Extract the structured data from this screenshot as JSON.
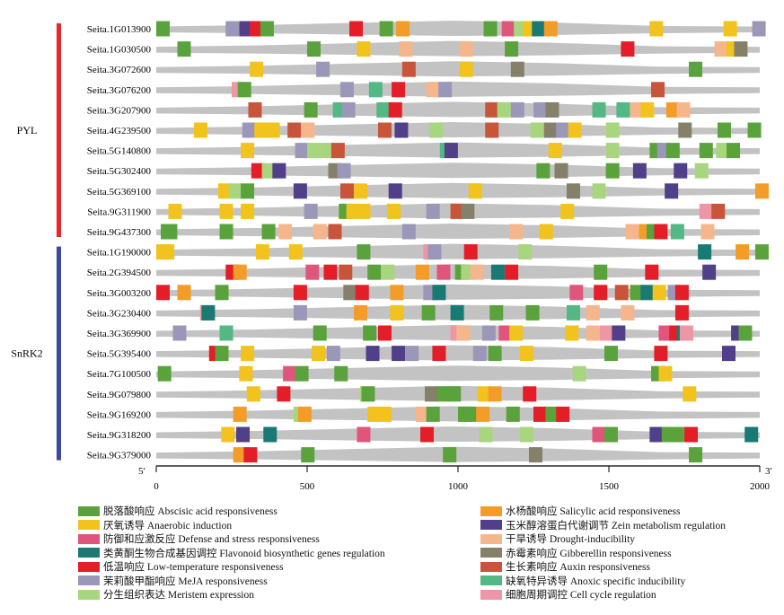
{
  "chart_data": {
    "type": "promoter-element-map",
    "x_axis": {
      "ticks": [
        0,
        500,
        1000,
        1500,
        2000
      ],
      "start_label": "5′",
      "end_label": "3′",
      "range": [
        0,
        2000
      ]
    },
    "groups": [
      {
        "name": "PYL",
        "color": "#e8262e",
        "rows": [
          0,
          10
        ]
      },
      {
        "name": "SnRK2",
        "color": "#3b4aa0",
        "rows": [
          11,
          21
        ]
      }
    ],
    "genes": [
      "Seita.1G013900",
      "Seita.1G030500",
      "Seita.3G072600",
      "Seita.3G076200",
      "Seita.3G207900",
      "Seita.4G239500",
      "Seita.5G140800",
      "Seita.5G302400",
      "Seita.5G369100",
      "Seita.9G311900",
      "Seita.9G437300",
      "Seita.1G190000",
      "Seita.2G394500",
      "Seita.3G003200",
      "Seita.3G230400",
      "Seita.3G369900",
      "Seita.5G395400",
      "Seita.7G100500",
      "Seita.9G079800",
      "Seita.9G169200",
      "Seita.9G318200",
      "Seita.9G379000"
    ],
    "categories": [
      {
        "key": "abscisic",
        "zh": "脱落酸响应",
        "en": "Abscisic acid responsiveness",
        "color": "#5aa33c"
      },
      {
        "key": "anaerobic",
        "zh": "厌氧诱导",
        "en": "Anaerobic induction",
        "color": "#f2c31c"
      },
      {
        "key": "defense",
        "zh": "防御和应激反应",
        "en": "Defense and stress responsiveness",
        "color": "#e0557c"
      },
      {
        "key": "flavonoid",
        "zh": "类黄酮生物合成基因调控",
        "en": "Flavonoid biosynthetic genes regulation",
        "color": "#187a72"
      },
      {
        "key": "lowtemp",
        "zh": "低温响应",
        "en": "Low-temperature responsiveness",
        "color": "#e31e28"
      },
      {
        "key": "meja",
        "zh": "茉莉酸甲酯响应",
        "en": "MeJA responsiveness",
        "color": "#9b97b8"
      },
      {
        "key": "meristem",
        "zh": "分生组织表达",
        "en": "Meristem expression",
        "color": "#a8d67e"
      },
      {
        "key": "salicylic",
        "zh": "水杨酸响应",
        "en": "Salicylic acid responsiveness",
        "color": "#f39c27"
      },
      {
        "key": "zein",
        "zh": "玉米醇溶蛋白代谢调节",
        "en": "Zein metabolism regulation",
        "color": "#513f8a"
      },
      {
        "key": "drought",
        "zh": "干旱诱导",
        "en": "Drought-inducibility",
        "color": "#f6b68b"
      },
      {
        "key": "gibberellin",
        "zh": "赤霉素响应",
        "en": "Gibberellin responsiveness",
        "color": "#848069"
      },
      {
        "key": "auxin",
        "zh": "生长素响应",
        "en": "Auxin responsiveness",
        "color": "#c8553a"
      },
      {
        "key": "anoxic",
        "zh": "缺氧特异诱导",
        "en": "Anoxic specific inducibility",
        "color": "#53b884"
      },
      {
        "key": "cellcycle",
        "zh": "细胞周期调控",
        "en": "Cell cycle regulation",
        "color": "#ec96a6"
      }
    ],
    "elements": [
      [
        [
          0,
          "abscisic"
        ],
        [
          230,
          "meja"
        ],
        [
          275,
          "zein"
        ],
        [
          310,
          "lowtemp"
        ],
        [
          345,
          "abscisic"
        ],
        [
          640,
          "lowtemp"
        ],
        [
          740,
          "abscisic"
        ],
        [
          795,
          "salicylic"
        ],
        [
          1085,
          "abscisic"
        ],
        [
          1145,
          "defense"
        ],
        [
          1185,
          "meristem"
        ],
        [
          1215,
          "anaerobic"
        ],
        [
          1245,
          "flavonoid"
        ],
        [
          1285,
          "salicylic"
        ],
        [
          1635,
          "anaerobic"
        ],
        [
          1880,
          "anaerobic"
        ],
        [
          1975,
          "meja"
        ]
      ],
      [
        [
          70,
          "abscisic"
        ],
        [
          500,
          "abscisic"
        ],
        [
          665,
          "anaerobic"
        ],
        [
          805,
          "drought"
        ],
        [
          1005,
          "drought"
        ],
        [
          1155,
          "abscisic"
        ],
        [
          1540,
          "lowtemp"
        ],
        [
          1850,
          "drought"
        ],
        [
          1890,
          "anaerobic"
        ],
        [
          1915,
          "gibberellin"
        ]
      ],
      [
        [
          310,
          "anaerobic"
        ],
        [
          530,
          "meja"
        ],
        [
          815,
          "auxin"
        ],
        [
          1005,
          "anaerobic"
        ],
        [
          1175,
          "gibberellin"
        ],
        [
          1765,
          "abscisic"
        ]
      ],
      [
        [
          250,
          "cellcycle"
        ],
        [
          270,
          "abscisic"
        ],
        [
          610,
          "meja"
        ],
        [
          705,
          "anoxic"
        ],
        [
          780,
          "lowtemp"
        ],
        [
          895,
          "drought"
        ],
        [
          935,
          "meja"
        ],
        [
          1640,
          "auxin"
        ]
      ],
      [
        [
          305,
          "auxin"
        ],
        [
          490,
          "abscisic"
        ],
        [
          585,
          "anoxic"
        ],
        [
          615,
          "meja"
        ],
        [
          730,
          "anoxic"
        ],
        [
          770,
          "lowtemp"
        ],
        [
          1090,
          "auxin"
        ],
        [
          1130,
          "meristem"
        ],
        [
          1175,
          "meja"
        ],
        [
          1250,
          "meja"
        ],
        [
          1290,
          "gibberellin"
        ],
        [
          1445,
          "anoxic"
        ],
        [
          1525,
          "anoxic"
        ],
        [
          1570,
          "drought"
        ],
        [
          1605,
          "anaerobic"
        ],
        [
          1690,
          "salicylic"
        ],
        [
          1725,
          "drought"
        ]
      ],
      [
        [
          125,
          "anaerobic"
        ],
        [
          285,
          "meja"
        ],
        [
          325,
          "anaerobic"
        ],
        [
          365,
          "anaerobic"
        ],
        [
          435,
          "auxin"
        ],
        [
          480,
          "drought"
        ],
        [
          735,
          "auxin"
        ],
        [
          790,
          "zein"
        ],
        [
          905,
          "meristem"
        ],
        [
          1090,
          "auxin"
        ],
        [
          1240,
          "meristem"
        ],
        [
          1285,
          "gibberellin"
        ],
        [
          1325,
          "meja"
        ],
        [
          1365,
          "anaerobic"
        ],
        [
          1490,
          "meristem"
        ],
        [
          1730,
          "gibberellin"
        ],
        [
          1860,
          "abscisic"
        ],
        [
          1960,
          "abscisic"
        ]
      ],
      [
        [
          280,
          "anaerobic"
        ],
        [
          460,
          "meja"
        ],
        [
          500,
          "meristem"
        ],
        [
          545,
          "meristem"
        ],
        [
          580,
          "auxin"
        ],
        [
          940,
          "anoxic"
        ],
        [
          955,
          "zein"
        ],
        [
          1300,
          "anaerobic"
        ],
        [
          1490,
          "meristem"
        ],
        [
          1635,
          "abscisic"
        ],
        [
          1660,
          "meja"
        ],
        [
          1690,
          "abscisic"
        ],
        [
          1800,
          "abscisic"
        ],
        [
          1855,
          "meristem"
        ],
        [
          1890,
          "abscisic"
        ]
      ],
      [
        [
          315,
          "lowtemp"
        ],
        [
          350,
          "meristem"
        ],
        [
          385,
          "zein"
        ],
        [
          570,
          "gibberellin"
        ],
        [
          600,
          "meja"
        ],
        [
          1260,
          "abscisic"
        ],
        [
          1320,
          "gibberellin"
        ],
        [
          1490,
          "abscisic"
        ],
        [
          1580,
          "zein"
        ],
        [
          1715,
          "zein"
        ],
        [
          1785,
          "meristem"
        ]
      ],
      [
        [
          205,
          "anaerobic"
        ],
        [
          240,
          "meristem"
        ],
        [
          280,
          "abscisic"
        ],
        [
          455,
          "zein"
        ],
        [
          610,
          "auxin"
        ],
        [
          655,
          "anaerobic"
        ],
        [
          770,
          "zein"
        ],
        [
          1035,
          "anaerobic"
        ],
        [
          1360,
          "gibberellin"
        ],
        [
          1445,
          "meristem"
        ],
        [
          1685,
          "zein"
        ],
        [
          1985,
          "salicylic"
        ]
      ],
      [
        [
          40,
          "anaerobic"
        ],
        [
          210,
          "anaerobic"
        ],
        [
          280,
          "anaerobic"
        ],
        [
          490,
          "meja"
        ],
        [
          605,
          "abscisic"
        ],
        [
          630,
          "anaerobic"
        ],
        [
          665,
          "anaerobic"
        ],
        [
          765,
          "anaerobic"
        ],
        [
          895,
          "meja"
        ],
        [
          975,
          "auxin"
        ],
        [
          1010,
          "gibberellin"
        ],
        [
          1340,
          "anaerobic"
        ],
        [
          1800,
          "cellcycle"
        ],
        [
          1840,
          "auxin"
        ]
      ],
      [
        [
          15,
          "abscisic"
        ],
        [
          25,
          "abscisic"
        ],
        [
          210,
          "abscisic"
        ],
        [
          350,
          "abscisic"
        ],
        [
          405,
          "drought"
        ],
        [
          520,
          "drought"
        ],
        [
          570,
          "auxin"
        ],
        [
          815,
          "meja"
        ],
        [
          1170,
          "drought"
        ],
        [
          1270,
          "anaerobic"
        ],
        [
          1555,
          "drought"
        ],
        [
          1600,
          "salicylic"
        ],
        [
          1625,
          "abscisic"
        ],
        [
          1650,
          "lowtemp"
        ],
        [
          1705,
          "anoxic"
        ],
        [
          1805,
          "drought"
        ]
      ],
      [
        [
          0,
          "anaerobic"
        ],
        [
          15,
          "anaerobic"
        ],
        [
          330,
          "anaerobic"
        ],
        [
          440,
          "anaerobic"
        ],
        [
          665,
          "abscisic"
        ],
        [
          885,
          "cellcycle"
        ],
        [
          900,
          "meja"
        ],
        [
          1020,
          "lowtemp"
        ],
        [
          1200,
          "meristem"
        ],
        [
          1795,
          "flavonoid"
        ],
        [
          1920,
          "salicylic"
        ],
        [
          1985,
          "abscisic"
        ]
      ],
      [
        [
          230,
          "lowtemp"
        ],
        [
          255,
          "salicylic"
        ],
        [
          495,
          "defense"
        ],
        [
          555,
          "lowtemp"
        ],
        [
          605,
          "auxin"
        ],
        [
          700,
          "abscisic"
        ],
        [
          745,
          "meristem"
        ],
        [
          860,
          "salicylic"
        ],
        [
          930,
          "defense"
        ],
        [
          990,
          "abscisic"
        ],
        [
          1010,
          "meristem"
        ],
        [
          1040,
          "drought"
        ],
        [
          1110,
          "flavonoid"
        ],
        [
          1155,
          "lowtemp"
        ],
        [
          1450,
          "abscisic"
        ],
        [
          1620,
          "lowtemp"
        ],
        [
          1810,
          "zein"
        ]
      ],
      [
        [
          0,
          "lowtemp"
        ],
        [
          70,
          "salicylic"
        ],
        [
          195,
          "abscisic"
        ],
        [
          455,
          "lowtemp"
        ],
        [
          620,
          "gibberellin"
        ],
        [
          660,
          "lowtemp"
        ],
        [
          775,
          "salicylic"
        ],
        [
          885,
          "meja"
        ],
        [
          915,
          "flavonoid"
        ],
        [
          1370,
          "defense"
        ],
        [
          1450,
          "lowtemp"
        ],
        [
          1520,
          "auxin"
        ],
        [
          1570,
          "abscisic"
        ],
        [
          1605,
          "flavonoid"
        ],
        [
          1645,
          "anaerobic"
        ],
        [
          1695,
          "meja"
        ],
        [
          1720,
          "lowtemp"
        ]
      ],
      [
        [
          145,
          "cellcycle"
        ],
        [
          150,
          "flavonoid"
        ],
        [
          455,
          "meja"
        ],
        [
          655,
          "salicylic"
        ],
        [
          775,
          "anaerobic"
        ],
        [
          880,
          "abscisic"
        ],
        [
          975,
          "flavonoid"
        ],
        [
          1105,
          "abscisic"
        ],
        [
          1225,
          "abscisic"
        ],
        [
          1360,
          "anoxic"
        ],
        [
          1425,
          "drought"
        ],
        [
          1540,
          "drought"
        ],
        [
          1720,
          "lowtemp"
        ]
      ],
      [
        [
          55,
          "meja"
        ],
        [
          210,
          "anoxic"
        ],
        [
          520,
          "abscisic"
        ],
        [
          685,
          "abscisic"
        ],
        [
          735,
          "lowtemp"
        ],
        [
          975,
          "cellcycle"
        ],
        [
          995,
          "drought"
        ],
        [
          1080,
          "meja"
        ],
        [
          1135,
          "defense"
        ],
        [
          1170,
          "anaerobic"
        ],
        [
          1355,
          "anaerobic"
        ],
        [
          1425,
          "drought"
        ],
        [
          1470,
          "cellcycle"
        ],
        [
          1510,
          "zein"
        ],
        [
          1665,
          "defense"
        ],
        [
          1700,
          "lowtemp"
        ],
        [
          1725,
          "flavonoid"
        ],
        [
          1735,
          "cellcycle"
        ],
        [
          1905,
          "zein"
        ],
        [
          1930,
          "abscisic"
        ]
      ],
      [
        [
          175,
          "lowtemp"
        ],
        [
          195,
          "abscisic"
        ],
        [
          280,
          "anaerobic"
        ],
        [
          515,
          "anaerobic"
        ],
        [
          565,
          "meja"
        ],
        [
          695,
          "zein"
        ],
        [
          780,
          "zein"
        ],
        [
          825,
          "meja"
        ],
        [
          915,
          "lowtemp"
        ],
        [
          1050,
          "meja"
        ],
        [
          1100,
          "abscisic"
        ],
        [
          1205,
          "anaerobic"
        ],
        [
          1485,
          "abscisic"
        ],
        [
          1650,
          "lowtemp"
        ],
        [
          1875,
          "zein"
        ]
      ],
      [
        [
          5,
          "abscisic"
        ],
        [
          275,
          "anaerobic"
        ],
        [
          420,
          "defense"
        ],
        [
          460,
          "abscisic"
        ],
        [
          590,
          "abscisic"
        ],
        [
          1380,
          "meristem"
        ],
        [
          1640,
          "abscisic"
        ],
        [
          1665,
          "anaerobic"
        ]
      ],
      [
        [
          300,
          "anaerobic"
        ],
        [
          400,
          "lowtemp"
        ],
        [
          675,
          "meristem"
        ],
        [
          680,
          "abscisic"
        ],
        [
          890,
          "gibberellin"
        ],
        [
          930,
          "abscisic"
        ],
        [
          965,
          "abscisic"
        ],
        [
          1065,
          "anaerobic"
        ],
        [
          1100,
          "salicylic"
        ],
        [
          1215,
          "lowtemp"
        ],
        [
          1745,
          "anaerobic"
        ]
      ],
      [
        [
          255,
          "salicylic"
        ],
        [
          455,
          "meristem"
        ],
        [
          470,
          "salicylic"
        ],
        [
          700,
          "anaerobic"
        ],
        [
          735,
          "anaerobic"
        ],
        [
          860,
          "drought"
        ],
        [
          895,
          "abscisic"
        ],
        [
          1000,
          "abscisic"
        ],
        [
          1020,
          "abscisic"
        ],
        [
          1060,
          "salicylic"
        ],
        [
          1160,
          "abscisic"
        ],
        [
          1250,
          "lowtemp"
        ],
        [
          1290,
          "abscisic"
        ],
        [
          1325,
          "lowtemp"
        ]
      ],
      [
        [
          215,
          "anaerobic"
        ],
        [
          265,
          "zein"
        ],
        [
          355,
          "flavonoid"
        ],
        [
          665,
          "defense"
        ],
        [
          875,
          "lowtemp"
        ],
        [
          1070,
          "meristem"
        ],
        [
          1205,
          "meristem"
        ],
        [
          1445,
          "defense"
        ],
        [
          1485,
          "abscisic"
        ],
        [
          1635,
          "zein"
        ],
        [
          1675,
          "abscisic"
        ],
        [
          1705,
          "abscisic"
        ],
        [
          1750,
          "lowtemp"
        ],
        [
          1950,
          "flavonoid"
        ]
      ],
      [
        [
          255,
          "salicylic"
        ],
        [
          290,
          "lowtemp"
        ],
        [
          480,
          "abscisic"
        ],
        [
          950,
          "abscisic"
        ],
        [
          1235,
          "gibberellin"
        ],
        [
          1765,
          "abscisic"
        ]
      ]
    ]
  }
}
